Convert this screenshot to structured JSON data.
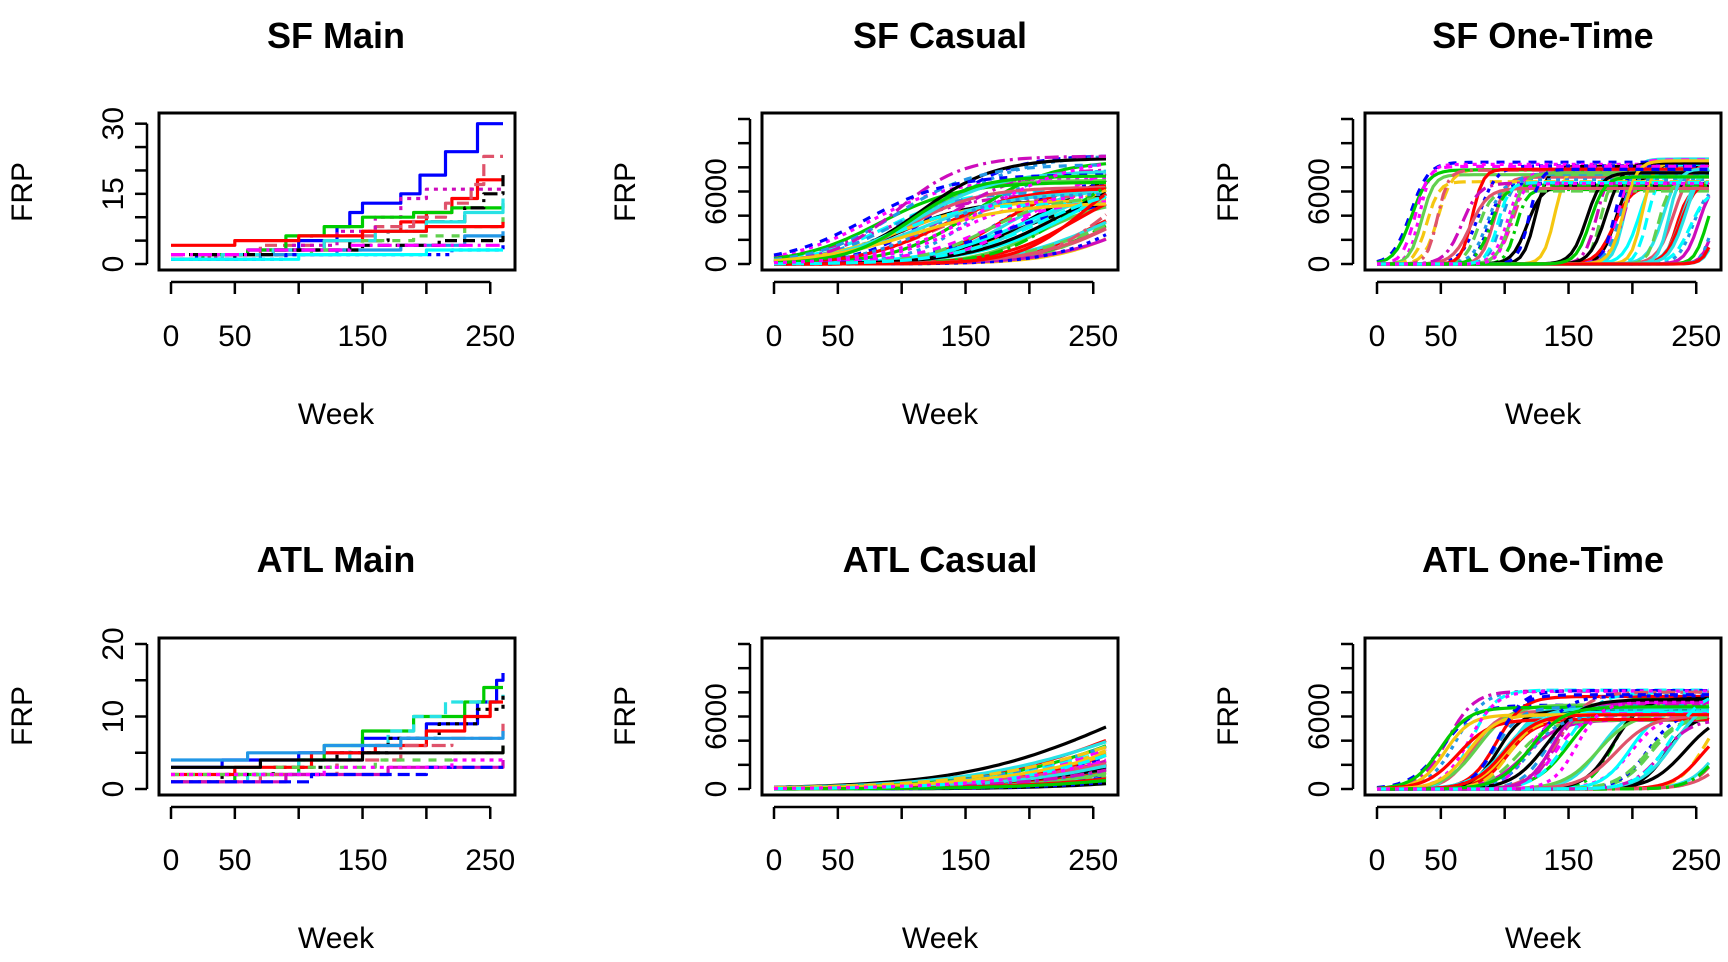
{
  "palette": [
    "#000000",
    "#DF536B",
    "#61D04F",
    "#2297E6",
    "#28E2E5",
    "#CD0BBC",
    "#F5C710",
    "#0000FF",
    "#FF0000",
    "#00CC00",
    "#00FFFF",
    "#FF00FF"
  ],
  "chart_data": [
    {
      "type": "line",
      "title": "SF Main",
      "xlabel": "Week",
      "ylabel": "FRP",
      "xlim": [
        0,
        260
      ],
      "ylim": [
        0,
        31
      ],
      "xticks": [
        0,
        50,
        100,
        150,
        200,
        250
      ],
      "xtick_labels": [
        "0",
        "50",
        "",
        "150",
        "",
        "250"
      ],
      "yticks": [
        0,
        5,
        10,
        15,
        20,
        25,
        30
      ],
      "ytick_labels": [
        "0",
        "",
        "",
        "15",
        "",
        "",
        "30"
      ],
      "grid": false,
      "legend": "none",
      "curve_family": "step",
      "series": [
        {
          "color": "#0000FF",
          "points": [
            [
              0,
              1
            ],
            [
              20,
              2
            ],
            [
              60,
              3
            ],
            [
              100,
              5
            ],
            [
              130,
              8
            ],
            [
              140,
              11
            ],
            [
              150,
              13
            ],
            [
              180,
              15
            ],
            [
              195,
              19
            ],
            [
              215,
              24
            ],
            [
              240,
              30
            ],
            [
              260,
              30
            ]
          ]
        },
        {
          "color": "#FF0000",
          "points": [
            [
              0,
              1
            ],
            [
              40,
              2
            ],
            [
              80,
              3
            ],
            [
              120,
              5
            ],
            [
              150,
              7
            ],
            [
              180,
              9
            ],
            [
              200,
              11
            ],
            [
              220,
              14
            ],
            [
              240,
              18
            ],
            [
              260,
              18
            ]
          ]
        },
        {
          "color": "#DF536B",
          "points": [
            [
              0,
              1
            ],
            [
              30,
              2
            ],
            [
              70,
              4
            ],
            [
              110,
              6
            ],
            [
              160,
              8
            ],
            [
              190,
              10
            ],
            [
              215,
              13
            ],
            [
              235,
              17
            ],
            [
              245,
              23
            ],
            [
              260,
              23
            ]
          ]
        },
        {
          "color": "#CD0BBC",
          "points": [
            [
              0,
              1
            ],
            [
              35,
              2
            ],
            [
              90,
              4
            ],
            [
              130,
              7
            ],
            [
              160,
              10
            ],
            [
              180,
              14
            ],
            [
              200,
              16
            ],
            [
              260,
              16
            ]
          ]
        },
        {
          "color": "#00CC00",
          "points": [
            [
              0,
              1
            ],
            [
              25,
              2
            ],
            [
              60,
              3
            ],
            [
              90,
              6
            ],
            [
              120,
              8
            ],
            [
              150,
              10
            ],
            [
              190,
              11
            ],
            [
              220,
              12
            ],
            [
              260,
              13
            ]
          ]
        },
        {
          "color": "#000000",
          "points": [
            [
              0,
              1
            ],
            [
              50,
              2
            ],
            [
              100,
              3
            ],
            [
              140,
              5
            ],
            [
              170,
              7
            ],
            [
              200,
              9
            ],
            [
              230,
              12
            ],
            [
              245,
              15
            ],
            [
              260,
              19
            ]
          ]
        },
        {
          "color": "#28E2E5",
          "points": [
            [
              0,
              1
            ],
            [
              40,
              2
            ],
            [
              80,
              3
            ],
            [
              120,
              5
            ],
            [
              160,
              7
            ],
            [
              200,
              9
            ],
            [
              230,
              11
            ],
            [
              260,
              14
            ]
          ]
        },
        {
          "color": "#61D04F",
          "points": [
            [
              0,
              1
            ],
            [
              60,
              2
            ],
            [
              110,
              3
            ],
            [
              150,
              5
            ],
            [
              190,
              6
            ],
            [
              230,
              8
            ],
            [
              260,
              10
            ]
          ]
        },
        {
          "color": "#2297E6",
          "points": [
            [
              0,
              1
            ],
            [
              70,
              2
            ],
            [
              130,
              3
            ],
            [
              180,
              4
            ],
            [
              230,
              6
            ],
            [
              260,
              7
            ]
          ]
        },
        {
          "color": "#FF0000",
          "points": [
            [
              0,
              4
            ],
            [
              50,
              5
            ],
            [
              100,
              6
            ],
            [
              150,
              7
            ],
            [
              200,
              8
            ],
            [
              260,
              9
            ]
          ]
        },
        {
          "color": "#000000",
          "points": [
            [
              0,
              2
            ],
            [
              80,
              3
            ],
            [
              150,
              4
            ],
            [
              210,
              5
            ],
            [
              260,
              6
            ]
          ]
        },
        {
          "color": "#0000FF",
          "points": [
            [
              0,
              1
            ],
            [
              90,
              2
            ],
            [
              170,
              2
            ],
            [
              220,
              3
            ],
            [
              260,
              4
            ]
          ]
        },
        {
          "color": "#00FFFF",
          "points": [
            [
              0,
              1
            ],
            [
              100,
              2
            ],
            [
              200,
              3
            ],
            [
              260,
              3
            ]
          ]
        },
        {
          "color": "#FF00FF",
          "points": [
            [
              0,
              2
            ],
            [
              60,
              3
            ],
            [
              140,
              4
            ],
            [
              260,
              4
            ]
          ]
        }
      ]
    },
    {
      "type": "line",
      "title": "SF Casual",
      "xlabel": "Week",
      "ylabel": "FRP",
      "xlim": [
        0,
        260
      ],
      "ylim": [
        0,
        12000
      ],
      "xticks": [
        0,
        50,
        100,
        150,
        200,
        250
      ],
      "xtick_labels": [
        "0",
        "50",
        "",
        "150",
        "",
        "250"
      ],
      "yticks": [
        0,
        2000,
        4000,
        6000,
        8000,
        10000,
        12000
      ],
      "ytick_labels": [
        "0",
        "",
        "",
        "6000",
        "",
        "",
        ""
      ],
      "grid": false,
      "legend": "none",
      "curve_family": "logistic",
      "curve_params": {
        "count": 60,
        "asymptote_range": [
          5000,
          9300
        ],
        "midpoint_range": [
          70,
          290
        ],
        "rate_range": [
          0.025,
          0.04
        ]
      }
    },
    {
      "type": "line",
      "title": "SF One-Time",
      "xlabel": "Week",
      "ylabel": "FRP",
      "xlim": [
        0,
        260
      ],
      "ylim": [
        0,
        12000
      ],
      "xticks": [
        0,
        50,
        100,
        150,
        200,
        250
      ],
      "xtick_labels": [
        "0",
        "50",
        "",
        "150",
        "",
        "250"
      ],
      "yticks": [
        0,
        2000,
        4000,
        6000,
        8000,
        10000,
        12000
      ],
      "ytick_labels": [
        "0",
        "",
        "",
        "6000",
        "",
        "",
        ""
      ],
      "grid": false,
      "legend": "none",
      "curve_family": "logistic",
      "curve_params": {
        "count": 60,
        "asymptote_range": [
          6000,
          8700
        ],
        "midpoint_range": [
          22,
          270
        ],
        "rate_range": [
          0.14,
          0.24
        ]
      }
    },
    {
      "type": "line",
      "title": "ATL Main",
      "xlabel": "Week",
      "ylabel": "FRP",
      "xlim": [
        0,
        260
      ],
      "ylim": [
        0,
        20
      ],
      "xticks": [
        0,
        50,
        100,
        150,
        200,
        250
      ],
      "xtick_labels": [
        "0",
        "50",
        "",
        "150",
        "",
        "250"
      ],
      "yticks": [
        0,
        5,
        10,
        15,
        20
      ],
      "ytick_labels": [
        "0",
        "",
        "10",
        "",
        "20"
      ],
      "grid": false,
      "legend": "none",
      "curve_family": "step",
      "series": [
        {
          "color": "#0000FF",
          "points": [
            [
              0,
              3
            ],
            [
              40,
              4
            ],
            [
              100,
              5
            ],
            [
              150,
              7
            ],
            [
              200,
              9
            ],
            [
              240,
              12
            ],
            [
              255,
              15
            ],
            [
              260,
              16
            ]
          ]
        },
        {
          "color": "#00CC00",
          "points": [
            [
              0,
              1
            ],
            [
              50,
              2
            ],
            [
              100,
              4
            ],
            [
              120,
              6
            ],
            [
              150,
              8
            ],
            [
              190,
              10
            ],
            [
              230,
              12
            ],
            [
              245,
              14
            ],
            [
              260,
              14
            ]
          ]
        },
        {
          "color": "#28E2E5",
          "points": [
            [
              0,
              1
            ],
            [
              60,
              2
            ],
            [
              100,
              4
            ],
            [
              140,
              6
            ],
            [
              170,
              8
            ],
            [
              190,
              10
            ],
            [
              215,
              12
            ],
            [
              260,
              13
            ]
          ]
        },
        {
          "color": "#000000",
          "points": [
            [
              0,
              1
            ],
            [
              40,
              2
            ],
            [
              80,
              3
            ],
            [
              130,
              5
            ],
            [
              170,
              7
            ],
            [
              210,
              9
            ],
            [
              240,
              11
            ],
            [
              260,
              13
            ]
          ]
        },
        {
          "color": "#FF0000",
          "points": [
            [
              0,
              2
            ],
            [
              50,
              3
            ],
            [
              110,
              5
            ],
            [
              160,
              6
            ],
            [
              200,
              8
            ],
            [
              230,
              10
            ],
            [
              250,
              12
            ],
            [
              260,
              12
            ]
          ]
        },
        {
          "color": "#DF536B",
          "points": [
            [
              0,
              1
            ],
            [
              70,
              2
            ],
            [
              130,
              4
            ],
            [
              180,
              6
            ],
            [
              220,
              7
            ],
            [
              260,
              9
            ]
          ]
        },
        {
          "color": "#2297E6",
          "points": [
            [
              0,
              4
            ],
            [
              60,
              5
            ],
            [
              120,
              6
            ],
            [
              180,
              7
            ],
            [
              260,
              8
            ]
          ]
        },
        {
          "color": "#61D04F",
          "points": [
            [
              0,
              2
            ],
            [
              80,
              3
            ],
            [
              160,
              4
            ],
            [
              220,
              5
            ],
            [
              260,
              6
            ]
          ]
        },
        {
          "color": "#CD0BBC",
          "points": [
            [
              0,
              1
            ],
            [
              90,
              2
            ],
            [
              170,
              3
            ],
            [
              260,
              4
            ]
          ]
        },
        {
          "color": "#000000",
          "points": [
            [
              0,
              3
            ],
            [
              70,
              4
            ],
            [
              150,
              5
            ],
            [
              260,
              6
            ]
          ]
        },
        {
          "color": "#0000FF",
          "points": [
            [
              0,
              1
            ],
            [
              110,
              2
            ],
            [
              200,
              3
            ],
            [
              260,
              3
            ]
          ]
        },
        {
          "color": "#FF00FF",
          "points": [
            [
              0,
              2
            ],
            [
              120,
              3
            ],
            [
              220,
              4
            ],
            [
              260,
              4
            ]
          ]
        }
      ]
    },
    {
      "type": "line",
      "title": "ATL Casual",
      "xlabel": "Week",
      "ylabel": "FRP",
      "xlim": [
        0,
        260
      ],
      "ylim": [
        0,
        12000
      ],
      "xticks": [
        0,
        50,
        100,
        150,
        200,
        250
      ],
      "xtick_labels": [
        "0",
        "50",
        "",
        "150",
        "",
        "250"
      ],
      "yticks": [
        0,
        2000,
        4000,
        6000,
        8000,
        10000,
        12000
      ],
      "ytick_labels": [
        "0",
        "",
        "",
        "6000",
        "",
        "",
        ""
      ],
      "grid": false,
      "legend": "none",
      "curve_family": "logistic",
      "curve_params": {
        "count": 60,
        "asymptote_range": [
          2500,
          12000
        ],
        "midpoint_range": [
          270,
          360
        ],
        "rate_range": [
          0.015,
          0.02
        ]
      }
    },
    {
      "type": "line",
      "title": "ATL One-Time",
      "xlabel": "Week",
      "ylabel": "FRP",
      "xlim": [
        0,
        260
      ],
      "ylim": [
        0,
        12000
      ],
      "xticks": [
        0,
        50,
        100,
        150,
        200,
        250
      ],
      "xtick_labels": [
        "0",
        "50",
        "",
        "150",
        "",
        "250"
      ],
      "yticks": [
        0,
        2000,
        4000,
        6000,
        8000,
        10000,
        12000
      ],
      "ytick_labels": [
        "0",
        "",
        "",
        "6000",
        "",
        "",
        ""
      ],
      "grid": false,
      "legend": "none",
      "curve_family": "logistic",
      "curve_params": {
        "count": 60,
        "asymptote_range": [
          5500,
          8200
        ],
        "midpoint_range": [
          45,
          280
        ],
        "rate_range": [
          0.07,
          0.11
        ]
      }
    }
  ]
}
